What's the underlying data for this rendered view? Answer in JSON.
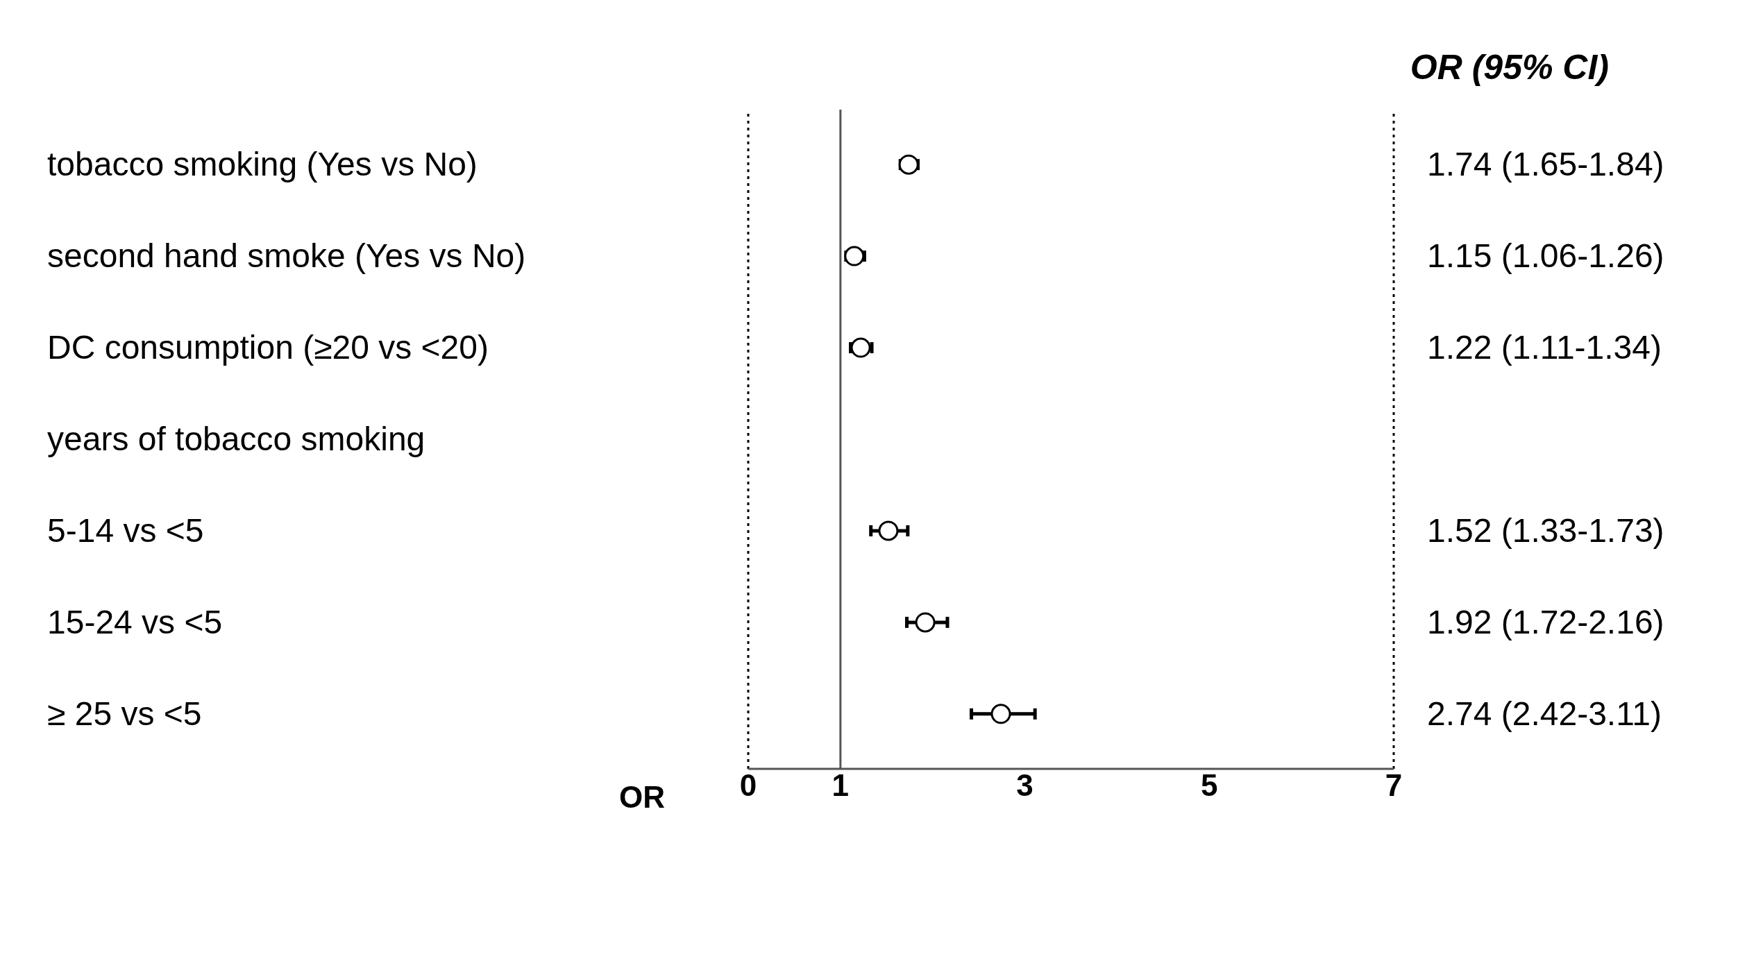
{
  "chart_data": {
    "type": "scatter",
    "orientation": "horizontal",
    "categories": [
      "tobacco smoking (Yes vs No)",
      "second hand smoke (Yes vs No)",
      "DC consumption (≥20 vs <20)",
      "years of tobacco smoking",
      "5-14 vs <5",
      "15-24 vs <5",
      "≥ 25 vs <5"
    ],
    "values": [
      1.74,
      1.15,
      1.22,
      null,
      1.52,
      1.92,
      2.74
    ],
    "errors": [
      [
        1.65,
        1.84
      ],
      [
        1.06,
        1.26
      ],
      [
        1.11,
        1.34
      ],
      null,
      [
        1.33,
        1.73
      ],
      [
        1.72,
        2.16
      ],
      [
        2.42,
        3.11
      ]
    ],
    "value_labels": [
      "1.74 (1.65-1.84)",
      "1.15 (1.06-1.26)",
      "1.22 (1.11-1.34)",
      null,
      "1.52 (1.33-1.73)",
      "1.92 (1.72-2.16)",
      "2.74 (2.42-3.11)"
    ],
    "color": "#000000",
    "marker": "circle",
    "xlabel": "OR",
    "xlim": [
      0,
      7
    ],
    "xticks": [
      0,
      1,
      3,
      5,
      7
    ],
    "ref_lines": [
      {
        "axis": "x",
        "value": 0,
        "line_style": "dotted",
        "color": "#000000"
      },
      {
        "axis": "x",
        "value": 1,
        "line_style": "solid",
        "color": "#555555"
      },
      {
        "axis": "x",
        "value": 7,
        "line_style": "dotted",
        "color": "#000000"
      }
    ],
    "annotations": [
      "OR (95% CI)"
    ],
    "grid": false,
    "legend": false
  }
}
